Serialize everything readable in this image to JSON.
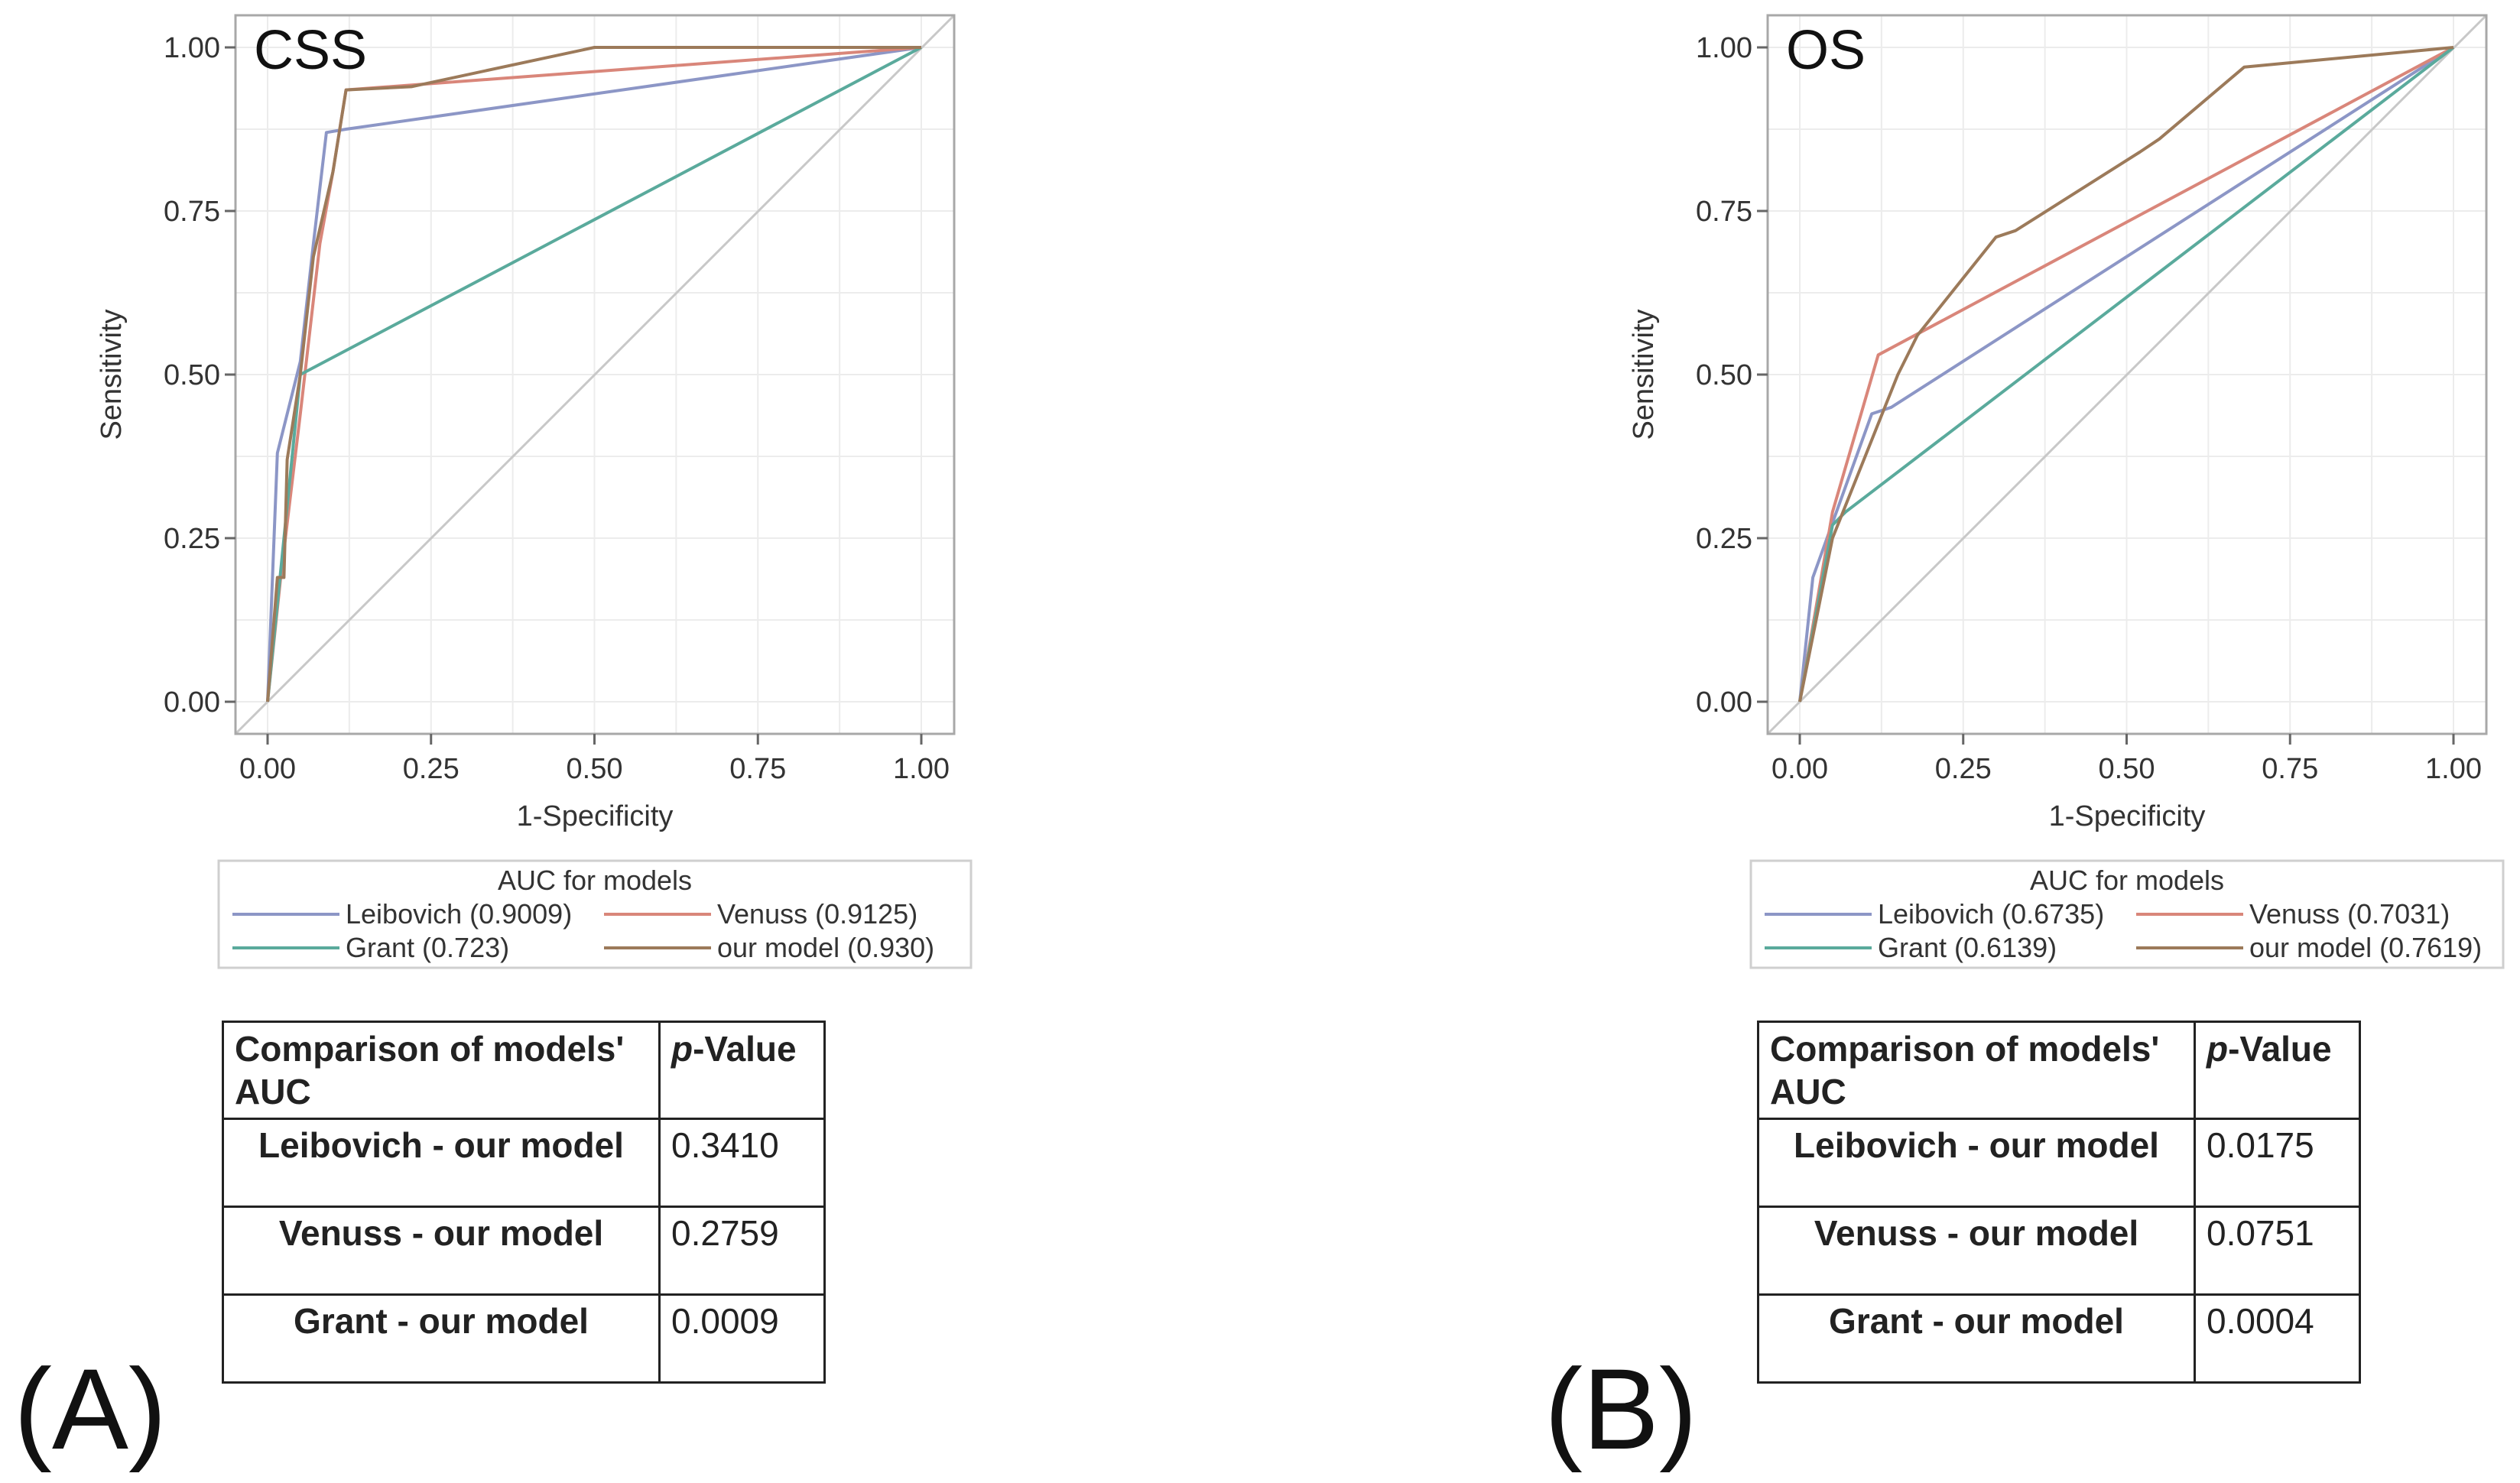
{
  "chart_data": [
    {
      "panel_label": "(A)",
      "type": "line",
      "title": "CSS",
      "xlabel": "1-Specificity",
      "ylabel": "Sensitivity",
      "xlim": [
        0,
        1
      ],
      "ylim": [
        0,
        1
      ],
      "x_ticks": [
        "0.00",
        "0.25",
        "0.50",
        "0.75",
        "1.00"
      ],
      "y_ticks": [
        "0.00",
        "0.25",
        "0.50",
        "0.75",
        "1.00"
      ],
      "grid": true,
      "reference_line": "diagonal",
      "legend_title": "AUC for models",
      "legend_position": "bottom",
      "series": [
        {
          "name": "Leibovich (0.9009)",
          "color": "#8c96c6",
          "x": [
            0,
            0.015,
            0.05,
            0.07,
            0.09,
            0.12,
            1.0
          ],
          "y": [
            0,
            0.38,
            0.52,
            0.7,
            0.87,
            0.875,
            1.0
          ]
        },
        {
          "name": "Venuss (0.9125)",
          "color": "#d9867a",
          "x": [
            0,
            0.02,
            0.05,
            0.08,
            0.1,
            0.12,
            1.0
          ],
          "y": [
            0,
            0.19,
            0.44,
            0.7,
            0.81,
            0.935,
            1.0
          ]
        },
        {
          "name": "Grant (0.723)",
          "color": "#5aaa9c",
          "x": [
            0,
            0.05,
            1.0
          ],
          "y": [
            0,
            0.5,
            1.0
          ]
        },
        {
          "name": "our model (0.930)",
          "color": "#9c7a5a",
          "x": [
            0,
            0.015,
            0.025,
            0.03,
            0.05,
            0.07,
            0.1,
            0.12,
            0.22,
            0.5,
            1.0
          ],
          "y": [
            0,
            0.19,
            0.19,
            0.37,
            0.5,
            0.68,
            0.81,
            0.935,
            0.94,
            1.0,
            1.0
          ]
        }
      ]
    },
    {
      "panel_label": "(B)",
      "type": "line",
      "title": "OS",
      "xlabel": "1-Specificity",
      "ylabel": "Sensitivity",
      "xlim": [
        0,
        1
      ],
      "ylim": [
        0,
        1
      ],
      "x_ticks": [
        "0.00",
        "0.25",
        "0.50",
        "0.75",
        "1.00"
      ],
      "y_ticks": [
        "0.00",
        "0.25",
        "0.50",
        "0.75",
        "1.00"
      ],
      "grid": true,
      "reference_line": "diagonal",
      "legend_title": "AUC for models",
      "legend_position": "bottom",
      "series": [
        {
          "name": "Leibovich (0.6735)",
          "color": "#8c96c6",
          "x": [
            0,
            0.02,
            0.11,
            0.14,
            1.0
          ],
          "y": [
            0,
            0.19,
            0.44,
            0.45,
            1.0
          ]
        },
        {
          "name": "Venuss (0.7031)",
          "color": "#d9867a",
          "x": [
            0,
            0.05,
            0.12,
            1.0
          ],
          "y": [
            0,
            0.29,
            0.53,
            1.0
          ]
        },
        {
          "name": "Grant (0.6139)",
          "color": "#5aaa9c",
          "x": [
            0,
            0.05,
            0.07,
            1.0
          ],
          "y": [
            0,
            0.27,
            0.29,
            1.0
          ]
        },
        {
          "name": "our model (0.7619)",
          "color": "#9c7a5a",
          "x": [
            0,
            0.05,
            0.11,
            0.13,
            0.15,
            0.18,
            0.3,
            0.33,
            0.52,
            0.55,
            0.68,
            1.0
          ],
          "y": [
            0,
            0.25,
            0.4,
            0.45,
            0.5,
            0.56,
            0.71,
            0.72,
            0.84,
            0.86,
            0.97,
            1.0
          ]
        }
      ]
    }
  ],
  "tables": [
    {
      "header": {
        "col1": "Comparison of models' AUC",
        "col2_italic": "p",
        "col2_rest": "-Value"
      },
      "rows": [
        {
          "comparison": "Leibovich - our model",
          "p_value": "0.3410"
        },
        {
          "comparison": "Venuss - our model",
          "p_value": "0.2759"
        },
        {
          "comparison": "Grant - our model",
          "p_value": "0.0009"
        }
      ]
    },
    {
      "header": {
        "col1": "Comparison of models' AUC",
        "col2_italic": "p",
        "col2_rest": "-Value"
      },
      "rows": [
        {
          "comparison": "Leibovich - our model",
          "p_value": "0.0175"
        },
        {
          "comparison": "Venuss - our model",
          "p_value": "0.0751"
        },
        {
          "comparison": "Grant - our model",
          "p_value": "0.0004"
        }
      ]
    }
  ]
}
